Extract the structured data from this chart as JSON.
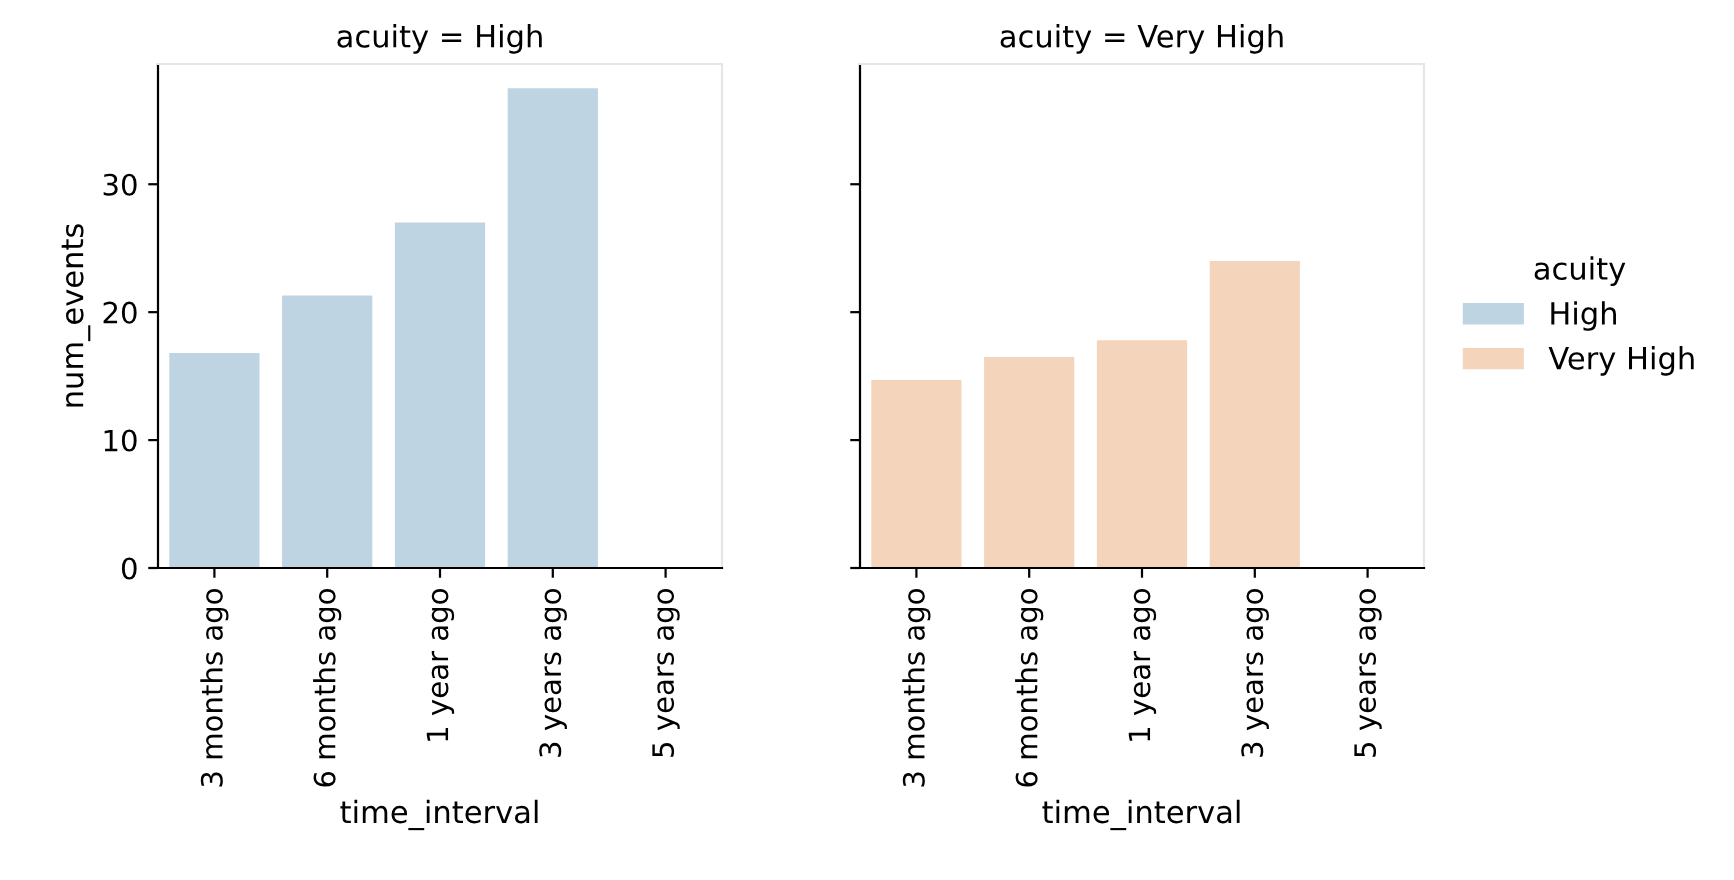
{
  "chart_data": [
    {
      "type": "bar",
      "title": "acuity = High",
      "xlabel": "time_interval",
      "ylabel": "num_events",
      "categories": [
        "3 months ago",
        "6 months ago",
        "1 year ago",
        "3 years ago",
        "5 years ago"
      ],
      "ylim": [
        0,
        39.4
      ],
      "yticks": [
        0,
        10,
        20,
        30
      ],
      "grid": false,
      "series": [
        {
          "name": "High",
          "color": "#bfd4e2",
          "values": [
            16.8,
            21.3,
            27.0,
            37.5,
            0
          ]
        }
      ]
    },
    {
      "type": "bar",
      "title": "acuity = Very High",
      "xlabel": "time_interval",
      "categories": [
        "3 months ago",
        "6 months ago",
        "1 year ago",
        "3 years ago",
        "5 years ago"
      ],
      "ylim": [
        0,
        39.4
      ],
      "yticks": [
        0,
        10,
        20,
        30
      ],
      "tick_labels": "x",
      "grid": false,
      "legend": "right",
      "legend_title": "acuity",
      "series": [
        {
          "name": "Very High",
          "color": "#f4d5bb",
          "values": [
            14.7,
            16.5,
            17.8,
            24.0,
            0
          ]
        }
      ]
    }
  ]
}
